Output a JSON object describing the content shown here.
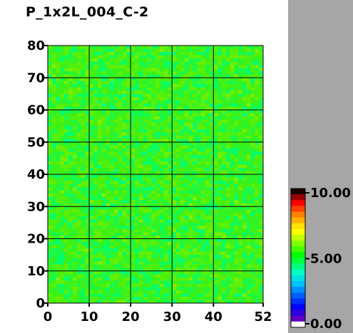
{
  "title": "P_1x2L_004_C-2",
  "chart_data": {
    "type": "heatmap",
    "title": "P_1x2L_004_C-2",
    "xlabel": "",
    "ylabel": "",
    "xlim": [
      0,
      52
    ],
    "ylim": [
      0,
      80
    ],
    "x_ticks": [
      0,
      10,
      20,
      30,
      40,
      52
    ],
    "y_ticks": [
      0,
      10,
      20,
      30,
      40,
      50,
      60,
      70,
      80
    ],
    "y_tick_labels": [
      "0",
      "10",
      "20",
      "30",
      "40",
      "50",
      "60",
      "70",
      "80"
    ],
    "grid": true,
    "cell_columns": 52,
    "cell_rows": 80,
    "value_typical": 5.5,
    "value_range_observed": [
      4.8,
      6.2
    ],
    "colorbar": {
      "min": 0.0,
      "max": 10.0,
      "tick_labels": [
        "10.00",
        "5.00",
        "0.00"
      ],
      "colors_top_to_bottom": [
        "#1a0000",
        "#9c0000",
        "#ff0000",
        "#ff4000",
        "#ff8000",
        "#ffb000",
        "#ffe000",
        "#ffff00",
        "#c0ff00",
        "#80ff00",
        "#40ff00",
        "#00ff00",
        "#00ff40",
        "#00ff80",
        "#00ffc0",
        "#00e0e0",
        "#00c0ff",
        "#0090ff",
        "#0060ff",
        "#0030ff",
        "#0000ff",
        "#3000e0",
        "#6000c0",
        "#ffffff"
      ]
    }
  }
}
